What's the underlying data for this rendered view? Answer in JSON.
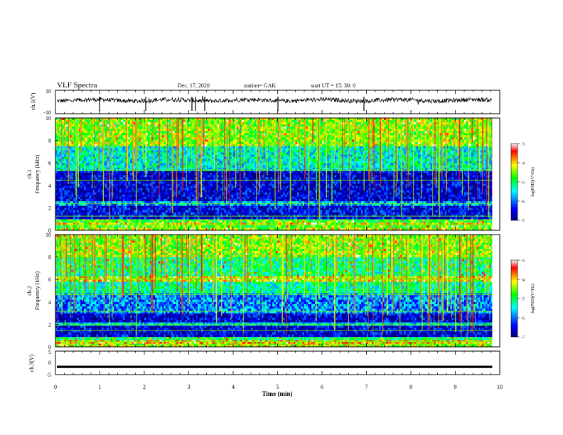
{
  "header": {
    "title": "VLF Spectra",
    "date": "Dec. 17, 2020",
    "station": "station= GAK",
    "start": "start  UT  =   15: 30: 0"
  },
  "colors": {
    "colormap": [
      "#000080",
      "#0000ff",
      "#00ffff",
      "#00ff00",
      "#ffff00",
      "#ff0000",
      "#ffffff"
    ],
    "trace": "#000000"
  },
  "chart_data": [
    {
      "type": "line",
      "panel": "ch1-waveform",
      "ylabel": "ch.1(V)",
      "ylim": [
        -10,
        10
      ],
      "yticks": [
        "10",
        "-10"
      ],
      "x_range": [
        0,
        9.83
      ],
      "baseline_mean_v": 1.5,
      "noise_amp_v": 1.8
    },
    {
      "type": "heatmap",
      "panel": "ch1-spectrogram",
      "ylabel_top": "ch.1",
      "ylabel": "Frequency  (kHz)",
      "ylim": [
        0,
        10
      ],
      "yticks": [
        "0",
        "2",
        "4",
        "6",
        "8",
        "10"
      ],
      "colorbar": {
        "label": "log(PSD)(V²/Hz)",
        "range": [
          -7,
          -3
        ],
        "ticks": [
          "-3",
          "-4",
          "-5",
          "-6",
          "-7"
        ]
      },
      "bands": [
        {
          "from": 0.0,
          "to": 0.25,
          "value": -4.4
        },
        {
          "from": 0.25,
          "to": 0.45,
          "value": -4.7
        },
        {
          "from": 0.45,
          "to": 0.7,
          "value": -4.2
        },
        {
          "from": 0.7,
          "to": 1.0,
          "value": -4.7
        },
        {
          "from": 1.0,
          "to": 2.2,
          "value": -6.5
        },
        {
          "from": 2.2,
          "to": 2.6,
          "value": -5.8
        },
        {
          "from": 2.6,
          "to": 5.3,
          "value": -6.6
        },
        {
          "from": 5.3,
          "to": 5.6,
          "value": -5.5
        },
        {
          "from": 5.6,
          "to": 7.5,
          "value": -5.4
        },
        {
          "from": 7.5,
          "to": 10.0,
          "value": -4.5
        }
      ]
    },
    {
      "type": "heatmap",
      "panel": "ch2-spectrogram",
      "ylabel_top": "ch.2",
      "ylabel": "Frequency  (kHz)",
      "ylim": [
        0,
        10
      ],
      "yticks": [
        "0",
        "2",
        "4",
        "6",
        "8",
        "10"
      ],
      "colorbar": {
        "label": "log(PSD)(V²/Hz)",
        "range": [
          -7,
          -3
        ],
        "ticks": [
          "-3",
          "-4",
          "-5",
          "-6",
          "-7"
        ]
      },
      "bands": [
        {
          "from": 0.0,
          "to": 0.3,
          "value": -4.4
        },
        {
          "from": 0.3,
          "to": 0.6,
          "value": -4.0
        },
        {
          "from": 0.6,
          "to": 0.9,
          "value": -5.0
        },
        {
          "from": 0.9,
          "to": 1.9,
          "value": -6.6
        },
        {
          "from": 1.9,
          "to": 2.2,
          "value": -5.5
        },
        {
          "from": 2.2,
          "to": 3.0,
          "value": -6.6
        },
        {
          "from": 3.0,
          "to": 4.8,
          "value": -5.9
        },
        {
          "from": 4.8,
          "to": 5.8,
          "value": -5.2
        },
        {
          "from": 5.8,
          "to": 6.3,
          "value": -4.2
        },
        {
          "from": 6.3,
          "to": 8.0,
          "value": -5.1
        },
        {
          "from": 8.0,
          "to": 10.0,
          "value": -4.5
        }
      ]
    },
    {
      "type": "line",
      "panel": "ch3-waveform",
      "ylabel": "ch.3(V)",
      "ylim": [
        -5,
        5
      ],
      "yticks": [
        "5",
        "0",
        "-5"
      ],
      "x_range": [
        0,
        9.83
      ],
      "value_v": -1.7
    }
  ],
  "x_axis": {
    "label": "Time  (min)",
    "range": [
      0,
      10
    ],
    "ticks": [
      "0",
      "1",
      "2",
      "3",
      "4",
      "5",
      "6",
      "7",
      "8",
      "9",
      "10"
    ]
  }
}
